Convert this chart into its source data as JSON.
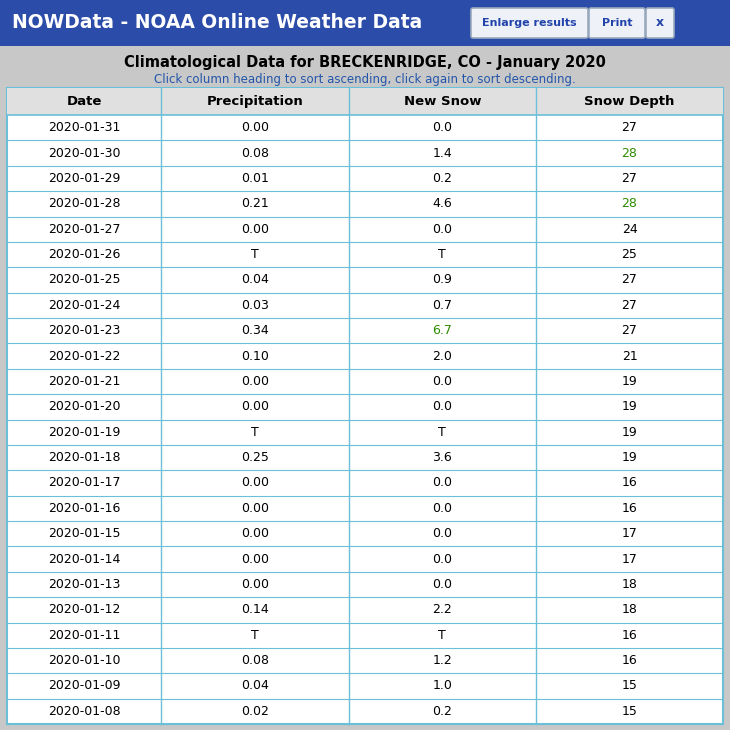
{
  "header_bg": "#2B4CA8",
  "header_text": "NOWData - NOAA Online Weather Data",
  "header_text_color": "#FFFFFF",
  "button1_text": "Enlarge results",
  "button2_text": "Print",
  "close_text": "x",
  "title": "Climatological Data for BRECKENRIDGE, CO - January 2020",
  "subtitle": "Click column heading to sort ascending, click again to sort descending.",
  "subtitle_color": "#2255AA",
  "outer_bg_color": "#C8C8C8",
  "table_bg_color": "#FFFFFF",
  "col_header_bg": "#E0E0E0",
  "col_headers": [
    "Date",
    "Precipitation",
    "New Snow",
    "Snow Depth"
  ],
  "rows": [
    [
      "2020-01-31",
      "0.00",
      "0.0",
      "27",
      "black",
      "black",
      "black",
      "black"
    ],
    [
      "2020-01-30",
      "0.08",
      "1.4",
      "28",
      "black",
      "black",
      "black",
      "#2E8B00"
    ],
    [
      "2020-01-29",
      "0.01",
      "0.2",
      "27",
      "black",
      "black",
      "black",
      "black"
    ],
    [
      "2020-01-28",
      "0.21",
      "4.6",
      "28",
      "black",
      "black",
      "black",
      "#2E8B00"
    ],
    [
      "2020-01-27",
      "0.00",
      "0.0",
      "24",
      "black",
      "black",
      "black",
      "black"
    ],
    [
      "2020-01-26",
      "T",
      "T",
      "25",
      "black",
      "black",
      "black",
      "black"
    ],
    [
      "2020-01-25",
      "0.04",
      "0.9",
      "27",
      "black",
      "black",
      "black",
      "black"
    ],
    [
      "2020-01-24",
      "0.03",
      "0.7",
      "27",
      "black",
      "black",
      "black",
      "black"
    ],
    [
      "2020-01-23",
      "0.34",
      "6.7",
      "27",
      "black",
      "black",
      "#2E8B00",
      "black"
    ],
    [
      "2020-01-22",
      "0.10",
      "2.0",
      "21",
      "black",
      "black",
      "black",
      "black"
    ],
    [
      "2020-01-21",
      "0.00",
      "0.0",
      "19",
      "black",
      "black",
      "black",
      "black"
    ],
    [
      "2020-01-20",
      "0.00",
      "0.0",
      "19",
      "black",
      "black",
      "black",
      "black"
    ],
    [
      "2020-01-19",
      "T",
      "T",
      "19",
      "black",
      "black",
      "black",
      "black"
    ],
    [
      "2020-01-18",
      "0.25",
      "3.6",
      "19",
      "black",
      "black",
      "black",
      "black"
    ],
    [
      "2020-01-17",
      "0.00",
      "0.0",
      "16",
      "black",
      "black",
      "black",
      "black"
    ],
    [
      "2020-01-16",
      "0.00",
      "0.0",
      "16",
      "black",
      "black",
      "black",
      "black"
    ],
    [
      "2020-01-15",
      "0.00",
      "0.0",
      "17",
      "black",
      "black",
      "black",
      "black"
    ],
    [
      "2020-01-14",
      "0.00",
      "0.0",
      "17",
      "black",
      "black",
      "black",
      "black"
    ],
    [
      "2020-01-13",
      "0.00",
      "0.0",
      "18",
      "black",
      "black",
      "black",
      "black"
    ],
    [
      "2020-01-12",
      "0.14",
      "2.2",
      "18",
      "black",
      "black",
      "black",
      "black"
    ],
    [
      "2020-01-11",
      "T",
      "T",
      "16",
      "black",
      "black",
      "black",
      "black"
    ],
    [
      "2020-01-10",
      "0.08",
      "1.2",
      "16",
      "black",
      "black",
      "black",
      "black"
    ],
    [
      "2020-01-09",
      "0.04",
      "1.0",
      "15",
      "black",
      "black",
      "black",
      "black"
    ],
    [
      "2020-01-08",
      "0.02",
      "0.2",
      "15",
      "black",
      "black",
      "black",
      "black"
    ]
  ],
  "row_line_color": "#6BBFD8",
  "col_line_color": "#6BBFD8",
  "figsize": [
    7.3,
    7.3
  ],
  "dpi": 100
}
